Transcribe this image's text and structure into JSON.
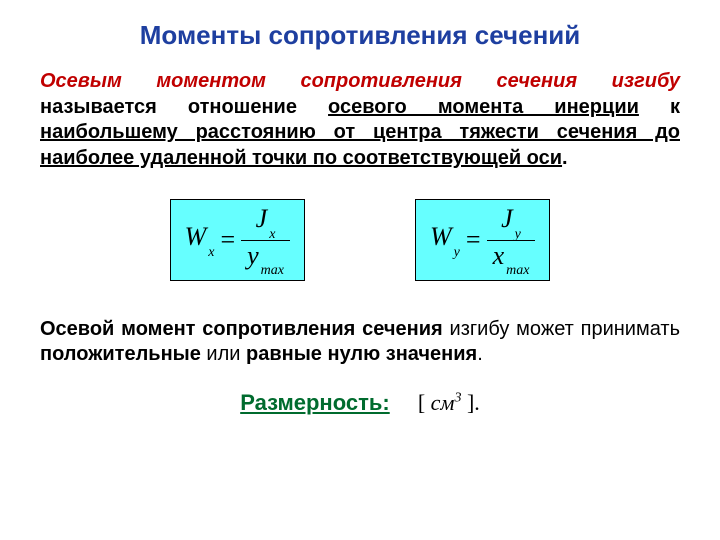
{
  "colors": {
    "title": "#1e3fa0",
    "lead": "#c00000",
    "dim_label": "#006b2e",
    "formula_bg": "#66ffff",
    "text": "#000000",
    "background": "#ffffff"
  },
  "title": "Моменты сопротивления сечений",
  "definition": {
    "lead": "Осевым моментом сопротивления сечения изгибу",
    "rest1": " называется отношение ",
    "u1": "осевого момента инерции",
    "rest2": " к ",
    "u2": "наибольшему расстоянию от центра тяжести сечения до наиболее удаленной точки по соответствующей оси",
    "rest3": "."
  },
  "formulas": [
    {
      "lhs_sym": "W",
      "lhs_sub": "x",
      "num_sym": "J",
      "num_sub": "x",
      "den_sym": "y",
      "den_sub": "max"
    },
    {
      "lhs_sym": "W",
      "lhs_sub": "y",
      "num_sym": "J",
      "num_sub": "y",
      "den_sym": "x",
      "den_sub": "max"
    }
  ],
  "note": {
    "b1": "Осевой момент сопротивления сечения",
    "plain1": " изгибу может принимать ",
    "b2": "положительные",
    "plain2": " или ",
    "b3": "равные нулю значения",
    "plain3": "."
  },
  "dimension": {
    "label": "Размерность:",
    "open": "[ ",
    "unit": "см",
    "exp": "3",
    "close": " ]."
  }
}
